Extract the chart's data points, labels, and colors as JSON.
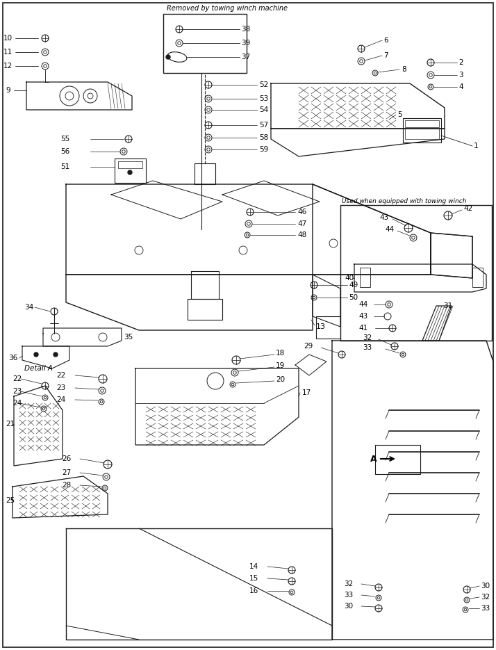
{
  "bg_color": "#ffffff",
  "line_color": "#1a1a1a",
  "fig_width": 7.14,
  "fig_height": 9.35,
  "dpi": 100,
  "inset1_title": "Removed by towing winch machine",
  "inset2_title": "Used when equipped with towing winch",
  "detail_label": "Detail A"
}
